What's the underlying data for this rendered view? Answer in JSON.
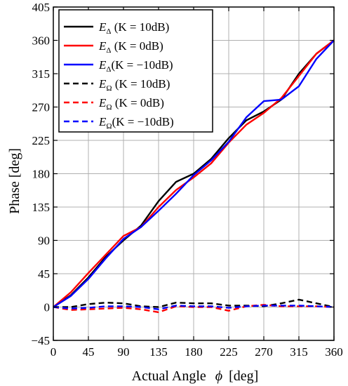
{
  "chart_data": {
    "type": "line",
    "xlabel": "Actual Angle",
    "xlabel_symbol": "ϕ",
    "xlabel_unit": "[deg]",
    "ylabel": "Phase [deg]",
    "xlim": [
      0,
      360
    ],
    "ylim": [
      -45,
      405
    ],
    "xticks": [
      0,
      45,
      90,
      135,
      180,
      225,
      270,
      315,
      360
    ],
    "yticks": [
      -45,
      0,
      45,
      90,
      135,
      180,
      225,
      270,
      315,
      360,
      405
    ],
    "xtick_labels": [
      "0",
      "45",
      "90",
      "135",
      "180",
      "225",
      "270",
      "315",
      "360"
    ],
    "ytick_labels": [
      "−45",
      "0",
      "45",
      "90",
      "135",
      "180",
      "225",
      "270",
      "315",
      "360",
      "405"
    ],
    "grid": true,
    "legend_position": "top-left",
    "x": [
      0,
      22.5,
      45,
      67.5,
      90,
      112.5,
      135,
      157.5,
      180,
      202.5,
      225,
      247.5,
      270,
      292.5,
      315,
      337.5,
      360
    ],
    "series": [
      {
        "legend_main": "E",
        "legend_sub": "Δ",
        "legend_rest": " (K = 10dB)",
        "color": "#000000",
        "dash": "solid",
        "values": [
          0,
          16,
          40,
          68,
          90,
          110,
          143,
          169,
          180,
          200,
          228,
          252,
          264,
          280,
          315,
          342,
          360
        ]
      },
      {
        "legend_main": "E",
        "legend_sub": "Δ",
        "legend_rest": " (K = 0dB)",
        "color": "#ff0000",
        "dash": "solid",
        "values": [
          0,
          20,
          46,
          71,
          96,
          108,
          135,
          158,
          175,
          194,
          222,
          246,
          262,
          282,
          312,
          342,
          360
        ]
      },
      {
        "legend_main": "E",
        "legend_sub": "Δ",
        "legend_rest": "(K = −10dB)",
        "color": "#0000ff",
        "dash": "solid",
        "values": [
          0,
          15,
          38,
          66,
          92,
          108,
          130,
          153,
          178,
          198,
          223,
          256,
          278,
          280,
          298,
          335,
          360
        ]
      },
      {
        "legend_main": "E",
        "legend_sub": "Ω",
        "legend_rest": " (K = 10dB)",
        "color": "#000000",
        "dash": "dashed",
        "values": [
          0,
          0,
          4,
          6,
          5,
          1,
          0,
          6,
          5,
          5,
          2,
          2,
          1,
          5,
          10,
          5,
          0
        ]
      },
      {
        "legend_main": "E",
        "legend_sub": "Ω",
        "legend_rest": " (K = 0dB)",
        "color": "#ff0000",
        "dash": "dashed",
        "values": [
          0,
          -4,
          -3,
          -2,
          -1,
          -3,
          -7,
          1,
          0,
          0,
          -5,
          1,
          3,
          1,
          1,
          1,
          0
        ]
      },
      {
        "legend_main": "E",
        "legend_sub": "Ω",
        "legend_rest": "(K = −10dB)",
        "color": "#0000ff",
        "dash": "dashed",
        "values": [
          0,
          -2,
          -1,
          1,
          1,
          0,
          -3,
          2,
          1,
          1,
          -1,
          1,
          2,
          2,
          2,
          1,
          0
        ]
      }
    ]
  }
}
